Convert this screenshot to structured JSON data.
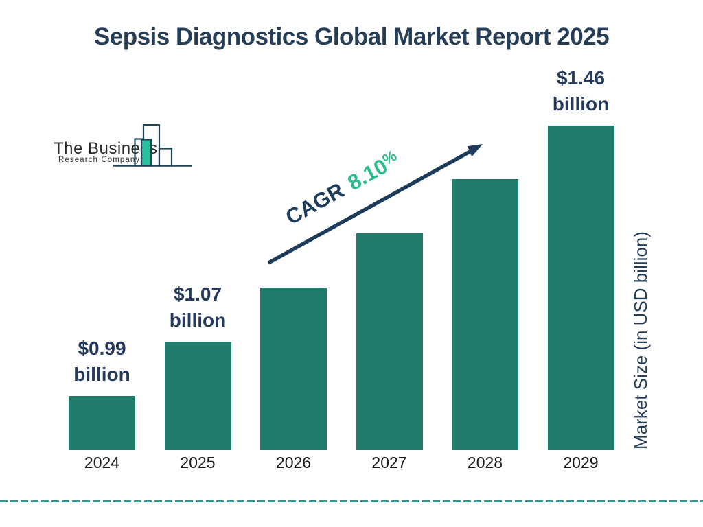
{
  "title": "Sepsis Diagnostics Global Market Report 2025",
  "logo": {
    "name_line1": "The Business",
    "name_line2": "Research Company"
  },
  "annotation": {
    "cagr_label": "CAGR",
    "cagr_value": "8.10",
    "cagr_percent_sign": "%"
  },
  "y_axis_label": "Market Size (in USD billion)",
  "colors": {
    "bar": "#227c6b",
    "navy": "#24395b",
    "title_navy": "#253d56",
    "arrow_navy": "#1d3b5a",
    "cagr_green": "#2ebd8a",
    "logo_teal": "#2abf9e",
    "dashed": "#2a9d8f",
    "axis_text": "#1a1a1a"
  },
  "chart_data": {
    "type": "bar",
    "title": "Sepsis Diagnostics Global Market Report 2025",
    "categories": [
      "2024",
      "2025",
      "2026",
      "2027",
      "2028",
      "2029"
    ],
    "values": [
      0.99,
      1.07,
      1.16,
      1.25,
      1.35,
      1.46
    ],
    "unit": "USD billion",
    "ylabel": "Market Size (in USD billion)",
    "cagr": "8.10%",
    "grid": false,
    "legend": false,
    "labeled_bars": [
      {
        "category": "2024",
        "label_lines": [
          "$0.99",
          "billion"
        ]
      },
      {
        "category": "2025",
        "label_lines": [
          "$1.07",
          "billion"
        ]
      },
      {
        "category": "2029",
        "label_lines": [
          "$1.46",
          "billion"
        ]
      }
    ]
  }
}
